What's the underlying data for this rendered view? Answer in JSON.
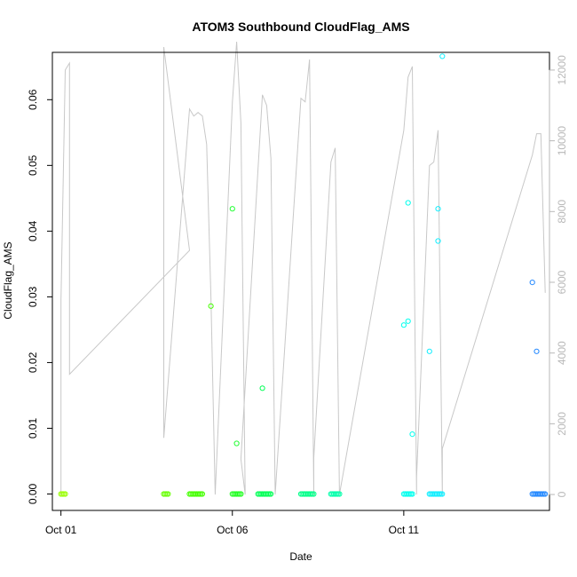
{
  "chart_data": {
    "type": "scatter",
    "title": "ATOM3 Southbound CloudFlag_AMS",
    "xlabel": "Date",
    "ylabel": "CloudFlag_AMS",
    "x_ticks": [
      "Oct 01",
      "Oct 06",
      "Oct 11"
    ],
    "xlim": [
      "2016-09-30T18:00",
      "2016-10-15T06:00"
    ],
    "ylim": [
      -0.0025,
      0.0672
    ],
    "y_ticks": [
      "0.00",
      "0.01",
      "0.02",
      "0.03",
      "0.04",
      "0.05",
      "0.06"
    ],
    "y_right_ticks": [
      "0",
      "2000",
      "4000",
      "6000",
      "8000",
      "10000",
      "12000"
    ],
    "y_right_lim": [
      -450,
      12500
    ],
    "grid": false,
    "legend": "none",
    "colors": {
      "altitude_trace": "#c8c8c8",
      "frame": "#000000",
      "right_axis": "#b8b8b8",
      "point_palette": [
        "#99ff00",
        "#55ff00",
        "#22ff22",
        "#00ff66",
        "#00ffaa",
        "#00ffd5",
        "#00ffff",
        "#22ddff",
        "#3399ff"
      ]
    },
    "points_zero": [
      {
        "x": "2016-10-01T00:00",
        "x_end": "2016-10-01T03:00",
        "y": 0.0,
        "color": "#99ff00"
      },
      {
        "x": "2016-10-04T00:00",
        "x_end": "2016-10-04T03:00",
        "y": 0.0,
        "color": "#66ff00"
      },
      {
        "x": "2016-10-04T18:00",
        "x_end": "2016-10-05T03:00",
        "y": 0.0,
        "color": "#44ff00"
      },
      {
        "x": "2016-10-06T00:00",
        "x_end": "2016-10-06T06:00",
        "y": 0.0,
        "color": "#22ff22"
      },
      {
        "x": "2016-10-06T18:00",
        "x_end": "2016-10-07T03:00",
        "y": 0.0,
        "color": "#00ff55"
      },
      {
        "x": "2016-10-08T00:00",
        "x_end": "2016-10-08T09:00",
        "y": 0.0,
        "color": "#00ff88"
      },
      {
        "x": "2016-10-08T21:00",
        "x_end": "2016-10-09T03:00",
        "y": 0.0,
        "color": "#00ffaa"
      },
      {
        "x": "2016-10-11T00:00",
        "x_end": "2016-10-11T06:00",
        "y": 0.0,
        "color": "#00ffee"
      },
      {
        "x": "2016-10-11T18:00",
        "x_end": "2016-10-12T03:00",
        "y": 0.0,
        "color": "#11eeff"
      },
      {
        "x": "2016-10-14T18:00",
        "x_end": "2016-10-15T03:00",
        "y": 0.0,
        "color": "#2288ff"
      }
    ],
    "points_nonzero": [
      {
        "x": "2016-10-05T09:00",
        "y": 0.0286,
        "color": "#44ff00"
      },
      {
        "x": "2016-10-06T00:00",
        "y": 0.0434,
        "color": "#22ff33"
      },
      {
        "x": "2016-10-06T03:00",
        "y": 0.0077,
        "color": "#22ff33"
      },
      {
        "x": "2016-10-06T21:00",
        "y": 0.0161,
        "color": "#00ff55"
      },
      {
        "x": "2016-10-11T00:00",
        "y": 0.0257,
        "color": "#00ffee"
      },
      {
        "x": "2016-10-11T03:00",
        "y": 0.0263,
        "color": "#00ffee"
      },
      {
        "x": "2016-10-11T03:00",
        "y": 0.0443,
        "color": "#00ffee"
      },
      {
        "x": "2016-10-11T06:00",
        "y": 0.0091,
        "color": "#00ffee"
      },
      {
        "x": "2016-10-11T18:00",
        "y": 0.0217,
        "color": "#11eeff"
      },
      {
        "x": "2016-10-12T00:00",
        "y": 0.0434,
        "color": "#11eeff"
      },
      {
        "x": "2016-10-12T00:00",
        "y": 0.0385,
        "color": "#11eeff"
      },
      {
        "x": "2016-10-12T03:00",
        "y": 0.0666,
        "color": "#11eeff"
      },
      {
        "x": "2016-10-14T18:00",
        "y": 0.0322,
        "color": "#2288ff"
      },
      {
        "x": "2016-10-14T21:00",
        "y": 0.0217,
        "color": "#2288ff"
      }
    ],
    "altitude_series": {
      "axis": "right",
      "points": [
        [
          "2016-10-01T00:00",
          0
        ],
        [
          "2016-10-01T00:00",
          5500
        ],
        [
          "2016-10-01T03:00",
          12000
        ],
        [
          "2016-10-01T06:00",
          12200
        ],
        [
          "2016-10-01T06:00",
          3400
        ],
        [
          "2016-10-04T18:00",
          6900
        ],
        [
          "2016-10-04T00:00",
          12650
        ],
        [
          "2016-10-04T00:00",
          1600
        ],
        [
          "2016-10-04T18:00",
          10900
        ],
        [
          "2016-10-04T21:00",
          10700
        ],
        [
          "2016-10-05T00:00",
          10800
        ],
        [
          "2016-10-05T03:00",
          10700
        ],
        [
          "2016-10-05T06:00",
          9900
        ],
        [
          "2016-10-05T09:00",
          5600
        ],
        [
          "2016-10-05T12:00",
          0
        ],
        [
          "2016-10-06T00:00",
          11100
        ],
        [
          "2016-10-06T03:00",
          12800
        ],
        [
          "2016-10-06T06:00",
          10500
        ],
        [
          "2016-10-06T09:00",
          0
        ],
        [
          "2016-10-06T06:00",
          1000
        ],
        [
          "2016-10-06T21:00",
          11300
        ],
        [
          "2016-10-07T00:00",
          11000
        ],
        [
          "2016-10-07T03:00",
          9500
        ],
        [
          "2016-10-07T06:00",
          0
        ],
        [
          "2016-10-08T00:00",
          11200
        ],
        [
          "2016-10-08T03:00",
          11100
        ],
        [
          "2016-10-08T06:00",
          12300
        ],
        [
          "2016-10-08T09:00",
          0
        ],
        [
          "2016-10-08T09:00",
          1050
        ],
        [
          "2016-10-08T21:00",
          9400
        ],
        [
          "2016-10-09T00:00",
          9800
        ],
        [
          "2016-10-09T03:00",
          0
        ],
        [
          "2016-10-11T00:00",
          10300
        ],
        [
          "2016-10-11T03:00",
          11800
        ],
        [
          "2016-10-11T06:00",
          12100
        ],
        [
          "2016-10-11T09:00",
          0
        ],
        [
          "2016-10-11T09:00",
          500
        ],
        [
          "2016-10-11T18:00",
          9300
        ],
        [
          "2016-10-11T21:00",
          9400
        ],
        [
          "2016-10-12T00:00",
          10300
        ],
        [
          "2016-10-12T03:00",
          0
        ],
        [
          "2016-10-12T03:00",
          1300
        ],
        [
          "2016-10-14T18:00",
          9600
        ],
        [
          "2016-10-14T21:00",
          10200
        ],
        [
          "2016-10-15T00:00",
          10200
        ],
        [
          "2016-10-15T03:00",
          5700
        ]
      ]
    }
  }
}
